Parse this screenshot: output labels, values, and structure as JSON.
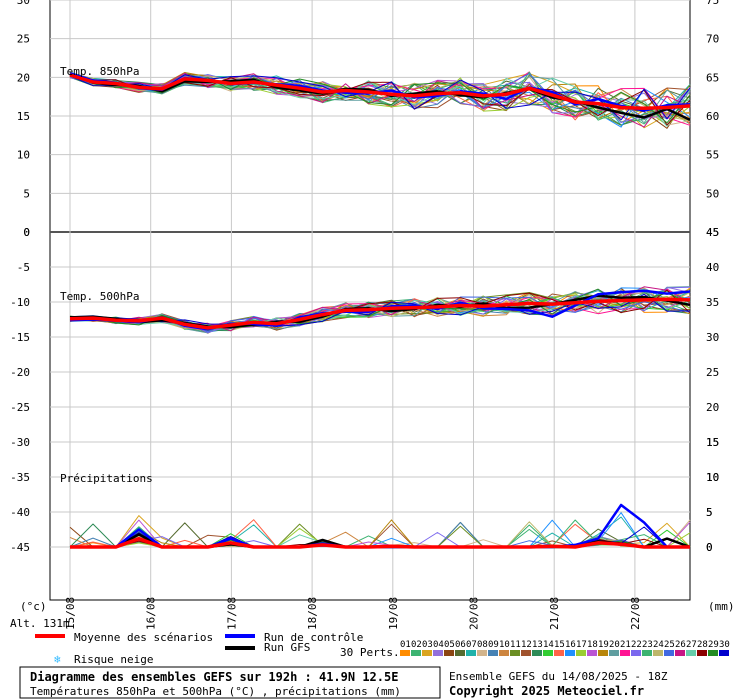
{
  "chart_data": {
    "type": "line",
    "x_labels": [
      "15/08",
      "16/08",
      "17/08",
      "18/08",
      "19/08",
      "20/08",
      "21/08",
      "22/08"
    ],
    "panels": [
      {
        "name": "temp850",
        "title": "Temp. 850hPa",
        "y_left_ticks": [
          "30",
          "25",
          "20",
          "15",
          "10",
          "5",
          "0"
        ],
        "y_right_ticks": [
          "75",
          "70",
          "65",
          "60",
          "55",
          "50",
          "45"
        ],
        "ylim": [
          0,
          30
        ],
        "mean": [
          20.3,
          19.4,
          19.2,
          18.7,
          18.5,
          19.8,
          19.6,
          19.2,
          19.4,
          19.0,
          18.6,
          18.1,
          18.3,
          18.1,
          17.8,
          17.6,
          17.9,
          18.0,
          17.6,
          17.8,
          18.6,
          17.7,
          16.8,
          16.6,
          16.1,
          16.0,
          16.1,
          16.3
        ],
        "control": [
          20.5,
          19.6,
          19.3,
          18.6,
          18.4,
          19.9,
          19.7,
          19.1,
          19.3,
          19.1,
          18.9,
          18.3,
          18.0,
          17.9,
          18.3,
          17.4,
          17.6,
          18.2,
          17.9,
          17.2,
          18.7,
          18.1,
          16.5,
          17.2,
          16.3,
          15.7,
          16.4,
          16.5
        ],
        "gfs": [
          20.4,
          19.3,
          19.0,
          18.9,
          18.2,
          19.5,
          19.4,
          19.5,
          19.7,
          18.7,
          18.3,
          17.9,
          18.5,
          18.4,
          17.6,
          17.9,
          18.2,
          17.7,
          17.4,
          18.0,
          18.5,
          17.4,
          16.9,
          16.1,
          15.4,
          14.8,
          15.9,
          14.5
        ]
      },
      {
        "name": "temp500",
        "title": "Temp. 500hPa",
        "y_left_ticks": [
          "0",
          "-5",
          "-10",
          "-15",
          "-20",
          "-25",
          "-30",
          "-35",
          "-40",
          "-45"
        ],
        "y_right_ticks": [
          "45",
          "40",
          "35",
          "30",
          "25",
          "20",
          "15",
          "10",
          "5",
          "0"
        ],
        "ylim": [
          -45,
          0
        ],
        "mean": [
          -12.4,
          -12.3,
          -12.6,
          -12.7,
          -12.3,
          -13.2,
          -13.7,
          -13.3,
          -12.9,
          -13.1,
          -12.5,
          -11.8,
          -11.2,
          -11.1,
          -10.9,
          -10.8,
          -10.7,
          -10.5,
          -10.6,
          -10.4,
          -10.2,
          -10.3,
          -10.1,
          -9.9,
          -9.8,
          -9.7,
          -9.6,
          -9.7
        ],
        "control": [
          -12.6,
          -12.5,
          -12.7,
          -12.9,
          -12.2,
          -13.4,
          -13.9,
          -13.1,
          -13.1,
          -13.4,
          -12.2,
          -11.6,
          -11.4,
          -11.4,
          -10.6,
          -10.5,
          -11.0,
          -10.1,
          -10.9,
          -11.0,
          -11.2,
          -12.1,
          -10.5,
          -8.9,
          -8.6,
          -8.4,
          -8.8,
          -8.5
        ],
        "gfs": [
          -12.2,
          -12.1,
          -12.4,
          -12.9,
          -12.6,
          -13.0,
          -13.5,
          -13.6,
          -13.2,
          -12.8,
          -12.8,
          -12.1,
          -11.0,
          -10.9,
          -11.3,
          -11.0,
          -10.4,
          -10.7,
          -10.2,
          -10.9,
          -10.8,
          -10.3,
          -9.7,
          -9.1,
          -9.4,
          -9.3,
          -9.8,
          -10.4
        ]
      },
      {
        "name": "precip",
        "title": "Précipitations",
        "y_right_ticks": [
          "15",
          "10",
          "5",
          "0"
        ],
        "unit": "(mm)",
        "mean": [
          0.0,
          0.0,
          0.0,
          1.2,
          0.0,
          0.0,
          0.0,
          0.6,
          0.0,
          0.0,
          0.0,
          0.3,
          0.0,
          0.0,
          0.1,
          0.0,
          0.0,
          0.0,
          0.0,
          0.0,
          0.0,
          0.1,
          0.0,
          0.6,
          0.4,
          0.0,
          0.0,
          0.0
        ],
        "control": [
          0.0,
          0.0,
          0.0,
          2.5,
          0.0,
          0.0,
          0.0,
          1.2,
          0.0,
          0.0,
          0.0,
          0.5,
          0.0,
          0.0,
          0.0,
          0.0,
          0.0,
          0.0,
          0.0,
          0.0,
          0.0,
          0.0,
          0.3,
          1.2,
          6.0,
          3.5,
          0.0,
          0.0
        ],
        "gfs": [
          0.0,
          0.0,
          0.0,
          1.8,
          0.0,
          0.0,
          0.0,
          0.4,
          0.0,
          0.0,
          0.0,
          1.0,
          0.0,
          0.0,
          0.0,
          0.0,
          0.0,
          0.0,
          0.0,
          0.0,
          0.0,
          0.0,
          0.0,
          0.8,
          0.5,
          0.0,
          1.2,
          0.0
        ]
      }
    ],
    "left_unit": "(°c)",
    "series_legend": [
      "Moyenne des scénarios",
      "Run de contrôle",
      "Run GFS"
    ]
  },
  "colors": {
    "mean": "#ff0000",
    "control": "#0000ff",
    "gfs": "#000000",
    "grid": "#c8c8c8",
    "frame": "#000000",
    "snow": "#33bbff"
  },
  "legend": {
    "mean_label": "Moyenne des scénarios",
    "control_label": "Run de contrôle",
    "gfs_label": "Run GFS",
    "snow_label": "Risque neige",
    "alt_label": "Alt. 131m",
    "perts_label": "30 Perts.",
    "pert_numbers": [
      "01",
      "02",
      "03",
      "04",
      "05",
      "06",
      "07",
      "08",
      "09",
      "10",
      "11",
      "12",
      "13",
      "14",
      "15",
      "16",
      "17",
      "18",
      "19",
      "20",
      "21",
      "22",
      "23",
      "24",
      "25",
      "26",
      "27",
      "28",
      "29",
      "30"
    ],
    "pert_colors": [
      "#ff8c00",
      "#3cb371",
      "#daa520",
      "#9370db",
      "#8b4513",
      "#556b2f",
      "#20b2aa",
      "#d2b48c",
      "#4682b4",
      "#cd853f",
      "#6b8e23",
      "#a0522d",
      "#2e8b57",
      "#32cd32",
      "#ff6347",
      "#1e90ff",
      "#9acd32",
      "#ba55d3",
      "#b8860b",
      "#5f9ea0",
      "#ff1493",
      "#7b68ee",
      "#3cb371",
      "#bdb76b",
      "#4169e1",
      "#c71585",
      "#66cdaa",
      "#8b0000",
      "#228b22",
      "#0000cd"
    ]
  },
  "footer": {
    "title": "Diagramme des ensembles GEFS sur 192h : 41.9N 12.5E",
    "subtitle": "Températures 850hPa et 500hPa (°C) , précipitations (mm)",
    "ensemble": "Ensemble GEFS du 14/08/2025 - 18Z",
    "copyright": "Copyright 2025 Meteociel.fr"
  }
}
